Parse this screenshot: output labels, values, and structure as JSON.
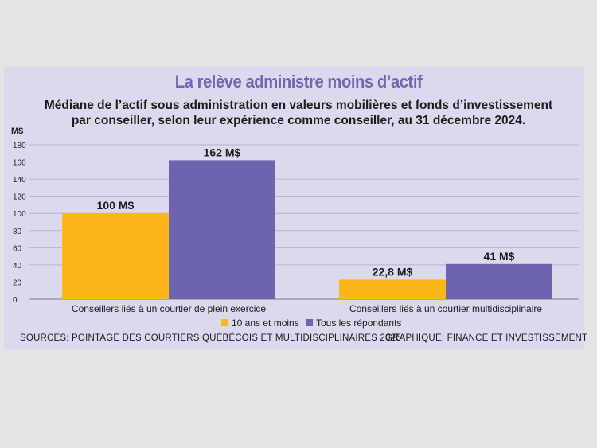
{
  "header": {
    "title": "La relève administre moins d’actif",
    "subtitle_line1": "Médiane de l’actif sous administration en valeurs mobilières et fonds d’investissement",
    "subtitle_line2": "par conseiller, selon leur expérience comme conseiller, au 31 décembre 2024."
  },
  "footer": {
    "source": "SOURCES: POINTAGE DES COURTIERS QUÉBÉCOIS ET MULTIDISCIPLINAIRES 2025",
    "credit": "GRAPHIQUE: FINANCE ET INVESTISSEMENT"
  },
  "colors": {
    "title": "#6f68b2",
    "series_1": "#fbb717",
    "series_2": "#6d64ae",
    "panel": "#dcd9ee",
    "grid": "#b7b3cf"
  },
  "chart_data": {
    "type": "bar",
    "ylabel": "M$",
    "ylim": [
      0,
      180
    ],
    "yticks": [
      0,
      20,
      40,
      60,
      80,
      100,
      120,
      140,
      160,
      180
    ],
    "grid": true,
    "legend_position": "bottom",
    "categories": [
      "Conseillers liés à un courtier de plein exercice",
      "Conseillers liés à un courtier multidisciplinaire"
    ],
    "series": [
      {
        "name": "10 ans et moins",
        "values": [
          100,
          22.8
        ],
        "labels": [
          "100 M$",
          "22,8 M$"
        ]
      },
      {
        "name": "Tous les répondants",
        "values": [
          162,
          41
        ],
        "labels": [
          "162 M$",
          "41 M$"
        ]
      }
    ]
  }
}
